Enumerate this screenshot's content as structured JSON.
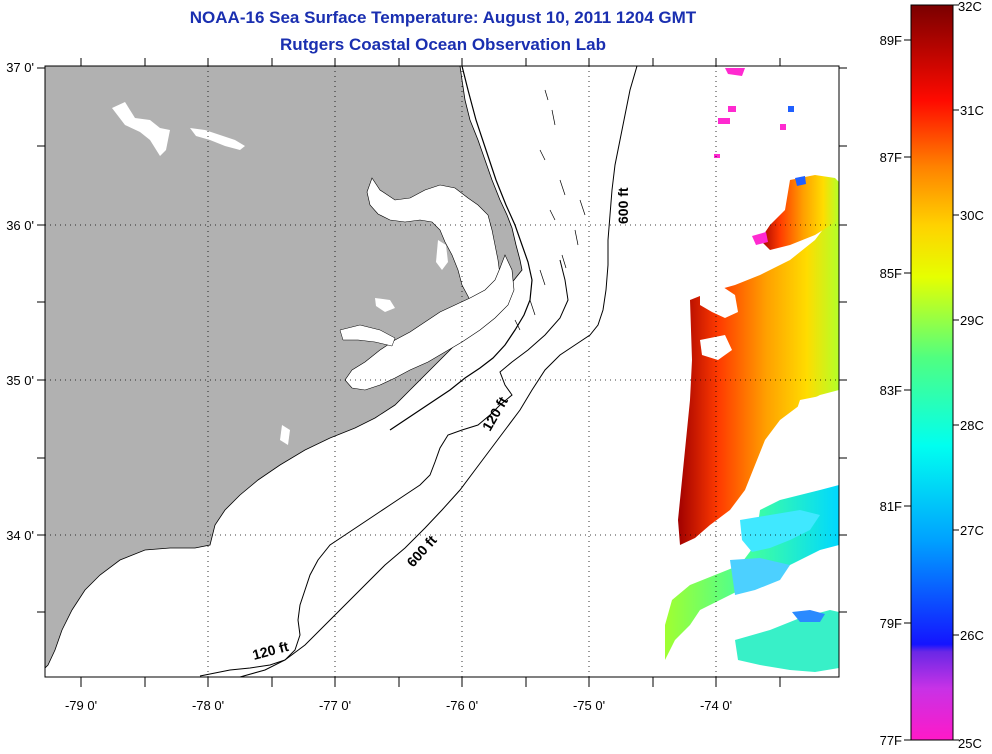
{
  "title_line1": "NOAA-16 Sea Surface Temperature:  August 10, 2011 1204 GMT",
  "title_line2": "Rutgers Coastal Ocean Observation Lab",
  "lat_labels": [
    "37 0'",
    "36 0'",
    "35 0'",
    "34 0'"
  ],
  "lon_labels": [
    "-79 0'",
    "-78 0'",
    "-77 0'",
    "-76 0'",
    "-75 0'",
    "-74 0'"
  ],
  "isobath_labels": {
    "north_600": "600 ft",
    "mid_120": "120 ft",
    "mid_600": "600 ft",
    "south_120": "120 ft"
  },
  "colorbar": {
    "fahrenheit": [
      "89F",
      "87F",
      "85F",
      "83F",
      "81F",
      "79F",
      "77F"
    ],
    "celsius": [
      "32C",
      "31C",
      "30C",
      "29C",
      "28C",
      "27C",
      "26C",
      "25C"
    ]
  },
  "colors": {
    "title": "#1a2fb0",
    "land": "#b1b1b1",
    "ocean": "#ffffff"
  }
}
